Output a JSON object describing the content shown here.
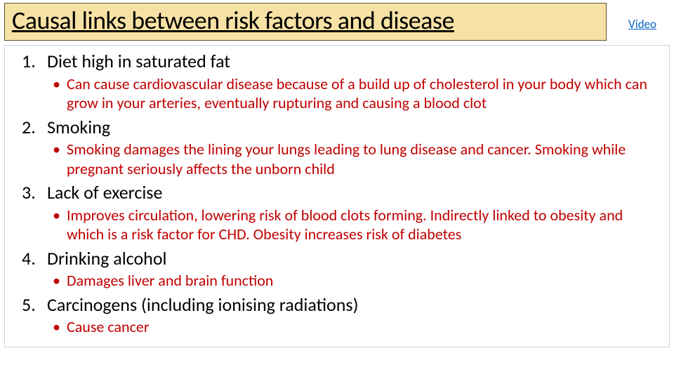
{
  "header": {
    "title": "Causal links between risk factors and disease",
    "title_bg_color": "#f7e2a5",
    "title_border_color": "#5b5331",
    "title_font_size": 36,
    "video_link_label": "Video",
    "video_link_color": "#0563c1"
  },
  "content": {
    "border_color": "#c7d8e8",
    "bullet_color": "#c00000",
    "item_font_size": 26,
    "subitem_font_size": 22,
    "items": [
      {
        "label": "Diet high in saturated fat",
        "bullets": [
          "Can cause cardiovascular disease because of a build up of cholesterol in your body which can grow in your arteries, eventually rupturing and causing a blood clot"
        ]
      },
      {
        "label": "Smoking",
        "bullets": [
          "Smoking damages the lining your lungs leading to lung disease and cancer. Smoking while pregnant seriously affects the unborn child"
        ]
      },
      {
        "label": "Lack of exercise",
        "bullets": [
          "Improves circulation, lowering risk of blood clots forming. Indirectly linked to obesity and which is a risk factor for CHD. Obesity increases risk of diabetes"
        ]
      },
      {
        "label": "Drinking alcohol",
        "bullets": [
          "Damages liver and brain function"
        ]
      },
      {
        "label": "Carcinogens (including ionising radiations)",
        "bullets": [
          "Cause cancer"
        ]
      }
    ]
  }
}
